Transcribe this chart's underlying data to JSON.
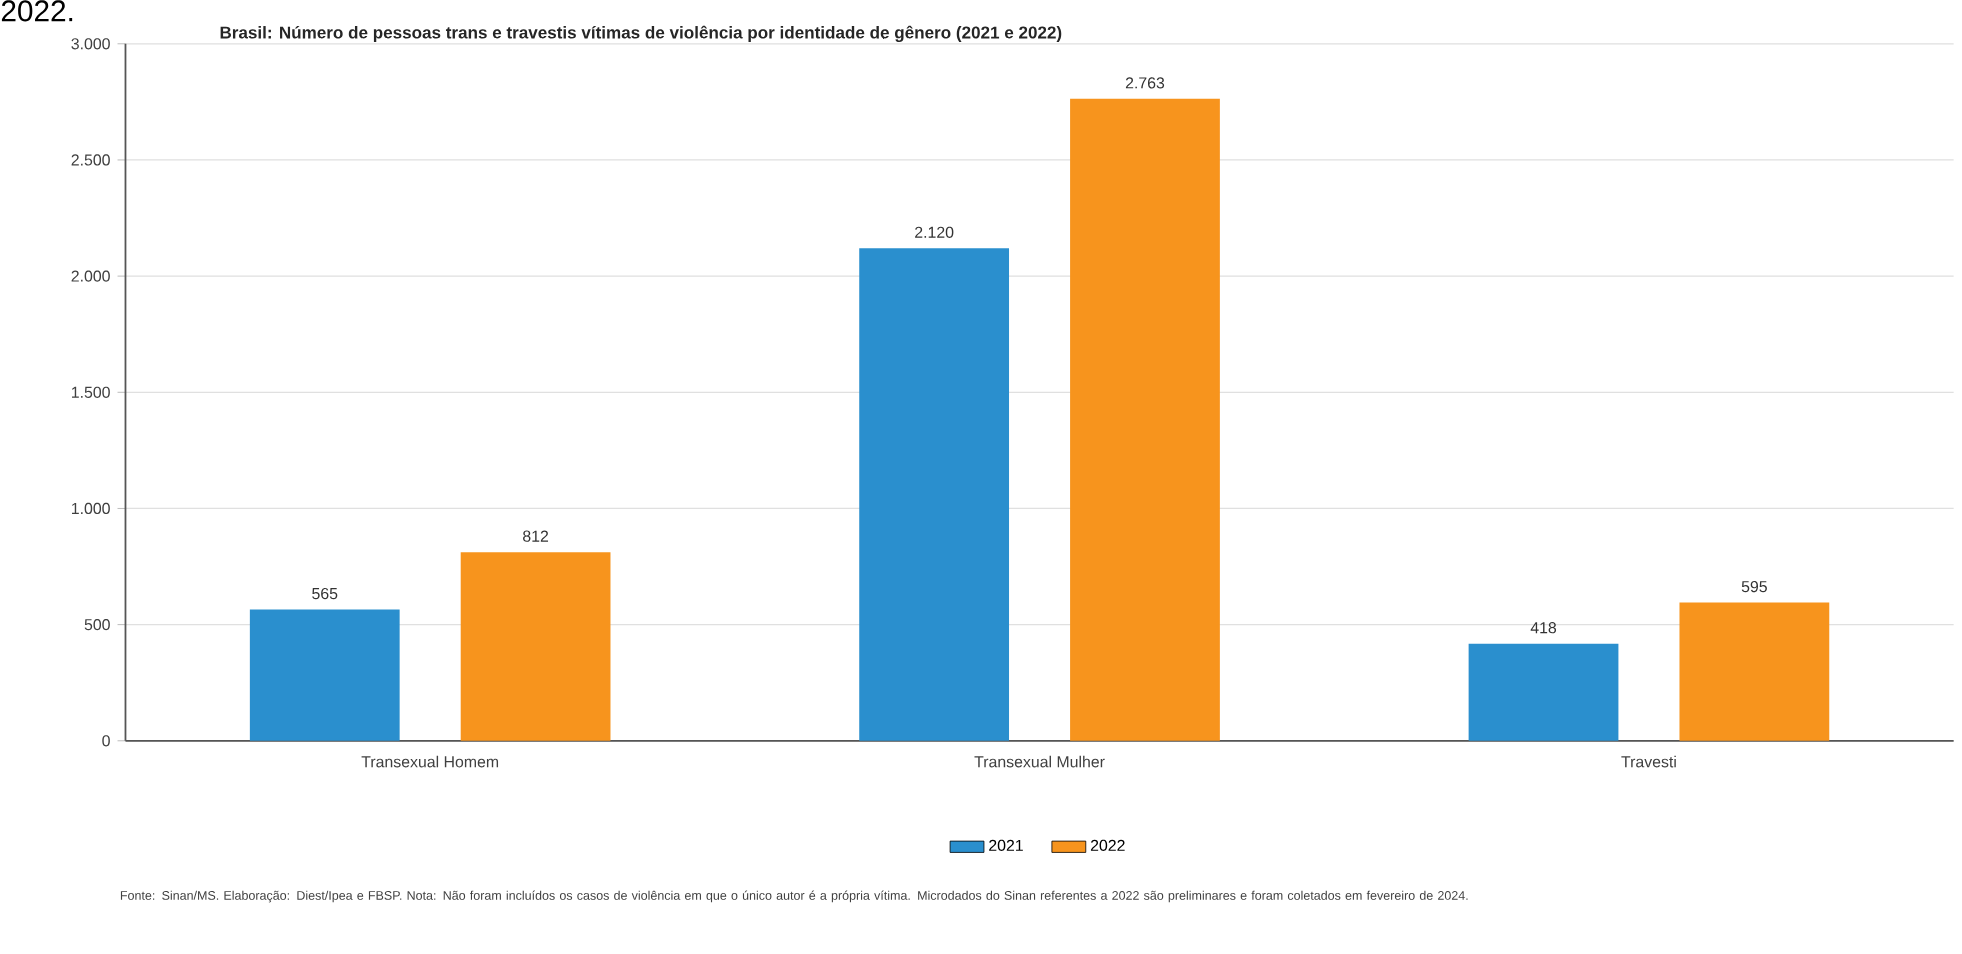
{
  "chart_data": {
    "type": "bar",
    "title": "Brasil: Número de pessoas trans e travestis vítimas de violência por identidade de gênero (2021 e 2022)",
    "categories": [
      "Transexual Homem",
      "Transexual Mulher",
      "Travesti"
    ],
    "series": [
      {
        "name": "2021",
        "color": "#2a8fce",
        "values": [
          565,
          2120,
          418
        ],
        "value_labels": [
          "565",
          "2.120",
          "418"
        ]
      },
      {
        "name": "2022",
        "color": "#f7941d",
        "values": [
          812,
          2763,
          595
        ],
        "value_labels": [
          "812",
          "2.763",
          "595"
        ]
      }
    ],
    "ylim": [
      0,
      3000
    ],
    "yticks": [
      {
        "value": 0,
        "label": "0"
      },
      {
        "value": 500,
        "label": "500"
      },
      {
        "value": 1000,
        "label": "1.000"
      },
      {
        "value": 1500,
        "label": "1.500"
      },
      {
        "value": 2000,
        "label": "2.000"
      },
      {
        "value": 2500,
        "label": "2.500"
      },
      {
        "value": 3000,
        "label": "3.000"
      }
    ],
    "grid": "y",
    "legend": "bottom",
    "annotations": [
      "2022.",
      "Fonte: Sinan/MS. Elaboração: Diest/Ipea e FBSP. Nota: Não foram incluídos os casos de violência em que o único autor é a própria vítima. Microdados do Sinan referentes a 2022 são preliminares e foram coletados em fevereiro de 2024."
    ]
  }
}
